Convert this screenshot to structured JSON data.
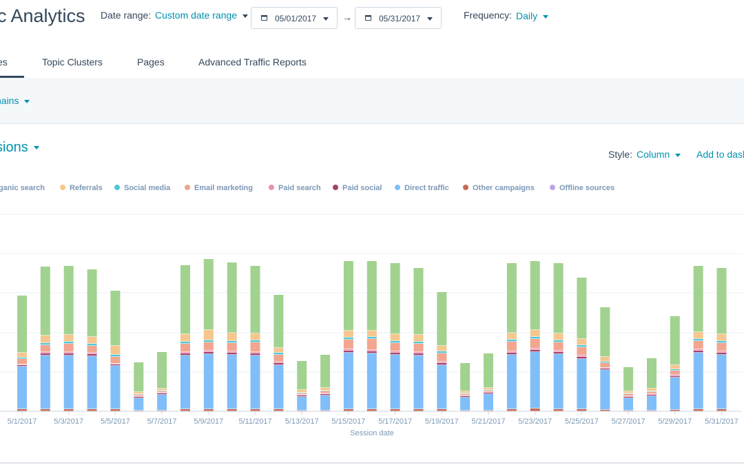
{
  "header": {
    "title": "c Analytics",
    "date_range_label": "Date range:",
    "date_range_value": "Custom date range",
    "start_date": "05/01/2017",
    "end_date": "05/31/2017",
    "arrow": "→",
    "frequency_label": "Frequency:",
    "frequency_value": "Daily"
  },
  "tabs": [
    {
      "label": "es",
      "active": true
    },
    {
      "label": "Topic Clusters",
      "active": false
    },
    {
      "label": "Pages",
      "active": false
    },
    {
      "label": "Advanced Traffic Reports",
      "active": false
    }
  ],
  "filter": {
    "label": "nains"
  },
  "metric": {
    "label": "sions"
  },
  "controls": {
    "style_label": "Style:",
    "style_value": "Column",
    "add_to_dashboard": "Add to dash"
  },
  "colors": {
    "organic_search": "#a2d28f",
    "referrals": "#f5c78e",
    "social_media": "#4fc7d8",
    "email_marketing": "#f2a58f",
    "paid_search": "#ea90b1",
    "paid_social": "#a2426a",
    "direct_traffic": "#7fbef9",
    "other_campaigns": "#c96a53",
    "offline_sources": "#b9a4e6"
  },
  "chart_data": {
    "type": "bar",
    "stacked": true,
    "xlabel": "Session date",
    "ylabel": "",
    "grid": true,
    "legend_position": "top",
    "categories": [
      "5/1/2017",
      "5/2/2017",
      "5/3/2017",
      "5/4/2017",
      "5/5/2017",
      "5/6/2017",
      "5/7/2017",
      "5/8/2017",
      "5/9/2017",
      "5/10/2017",
      "5/11/2017",
      "5/12/2017",
      "5/13/2017",
      "5/14/2017",
      "5/15/2017",
      "5/16/2017",
      "5/17/2017",
      "5/18/2017",
      "5/19/2017",
      "5/20/2017",
      "5/21/2017",
      "5/22/2017",
      "5/23/2017",
      "5/24/2017",
      "5/25/2017",
      "5/26/2017",
      "5/27/2017",
      "5/28/2017",
      "5/29/2017",
      "5/30/2017",
      "5/31/2017"
    ],
    "tick_labels": [
      "5/1/2017",
      "5/3/2017",
      "5/5/2017",
      "5/7/2017",
      "5/9/2017",
      "5/11/2017",
      "5/13/2017",
      "5/15/2017",
      "5/17/2017",
      "5/19/2017",
      "5/21/2017",
      "5/23/2017",
      "5/25/2017",
      "5/27/2017",
      "5/29/2017",
      "5/31/2017"
    ],
    "legend_labels": [
      "Organic search",
      "Referrals",
      "Social media",
      "Email marketing",
      "Paid search",
      "Paid social",
      "Direct traffic",
      "Other campaigns",
      "Offline sources"
    ],
    "series": [
      {
        "name": "Other campaigns",
        "color": "#c96a53",
        "values": [
          3,
          3,
          3,
          3,
          3,
          1,
          1,
          3,
          3,
          3,
          3,
          3,
          1,
          1,
          3,
          3,
          3,
          3,
          3,
          1,
          1,
          3,
          4,
          3,
          3,
          2,
          1,
          1,
          2,
          3,
          3
        ]
      },
      {
        "name": "Direct traffic",
        "color": "#7fbef9",
        "values": [
          62,
          78,
          78,
          77,
          63,
          18,
          23,
          78,
          80,
          79,
          78,
          64,
          20,
          22,
          82,
          81,
          79,
          78,
          64,
          19,
          24,
          79,
          82,
          80,
          73,
          58,
          18,
          21,
          47,
          82,
          79
        ]
      },
      {
        "name": "Paid social",
        "color": "#a2426a",
        "values": [
          2,
          3,
          3,
          3,
          2,
          2,
          2,
          3,
          3,
          3,
          3,
          3,
          2,
          2,
          3,
          3,
          3,
          3,
          3,
          2,
          2,
          3,
          3,
          3,
          3,
          2,
          2,
          2,
          2,
          3,
          3
        ]
      },
      {
        "name": "Paid search",
        "color": "#ea90b1",
        "values": [
          1,
          2,
          2,
          2,
          1,
          1,
          1,
          2,
          2,
          2,
          2,
          2,
          1,
          1,
          2,
          2,
          2,
          2,
          2,
          1,
          1,
          2,
          2,
          2,
          2,
          1,
          1,
          1,
          2,
          2,
          2
        ]
      },
      {
        "name": "Email marketing",
        "color": "#f2a58f",
        "values": [
          8,
          10,
          12,
          10,
          10,
          2,
          2,
          12,
          12,
          12,
          14,
          10,
          2,
          3,
          14,
          16,
          12,
          12,
          12,
          2,
          2,
          14,
          14,
          12,
          12,
          7,
          3,
          3,
          6,
          12,
          12
        ]
      },
      {
        "name": "Social media",
        "color": "#4fc7d8",
        "values": [
          2,
          3,
          3,
          3,
          3,
          1,
          1,
          3,
          3,
          3,
          3,
          3,
          1,
          1,
          3,
          3,
          3,
          3,
          3,
          1,
          1,
          3,
          3,
          3,
          3,
          2,
          1,
          1,
          2,
          3,
          3
        ]
      },
      {
        "name": "Referrals",
        "color": "#f5c78e",
        "values": [
          7,
          11,
          10,
          10,
          13,
          3,
          3,
          11,
          15,
          12,
          10,
          7,
          4,
          4,
          10,
          9,
          10,
          10,
          8,
          3,
          3,
          10,
          10,
          10,
          9,
          7,
          3,
          4,
          6,
          10,
          10
        ]
      },
      {
        "name": "Organic search",
        "color": "#a2d28f",
        "values": [
          83,
          100,
          100,
          98,
          80,
          43,
          53,
          100,
          103,
          102,
          98,
          77,
          42,
          48,
          101,
          101,
          103,
          97,
          78,
          41,
          50,
          101,
          100,
          102,
          89,
          72,
          35,
          44,
          71,
          96,
          96
        ]
      }
    ]
  }
}
